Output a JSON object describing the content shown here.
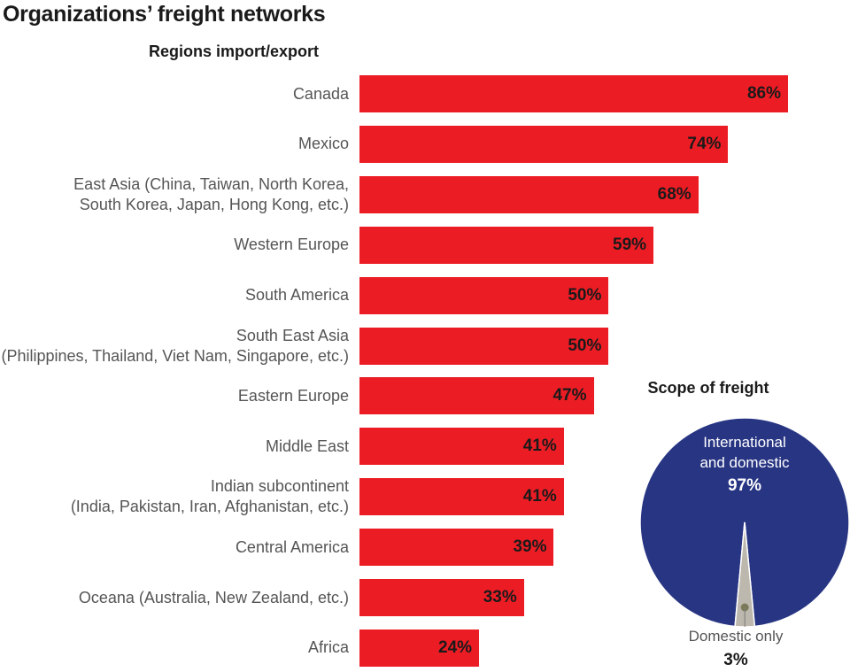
{
  "title": "Organizations’ freight networks",
  "chart_data": [
    {
      "type": "bar",
      "orientation": "horizontal",
      "title": "Regions import/export",
      "categories": [
        [
          "Canada"
        ],
        [
          "Mexico"
        ],
        [
          "East Asia (China, Taiwan, North Korea,",
          "South Korea, Japan, Hong Kong, etc.)"
        ],
        [
          "Western Europe"
        ],
        [
          "South America"
        ],
        [
          "South East Asia",
          "(Philippines, Thailand, Viet Nam, Singapore, etc.)"
        ],
        [
          "Eastern Europe"
        ],
        [
          "Middle East"
        ],
        [
          "Indian subcontinent",
          "(India, Pakistan, Iran, Afghanistan, etc.)"
        ],
        [
          "Central America"
        ],
        [
          "Oceana (Australia, New Zealand, etc.)"
        ],
        [
          "Africa"
        ]
      ],
      "values": [
        86,
        74,
        68,
        59,
        50,
        50,
        47,
        41,
        41,
        39,
        33,
        24
      ],
      "value_labels": [
        "86%",
        "74%",
        "68%",
        "59%",
        "50%",
        "50%",
        "47%",
        "41%",
        "41%",
        "39%",
        "33%",
        "24%"
      ],
      "xlim": [
        0,
        100
      ],
      "bar_color": "#ec1c24",
      "grid": false
    },
    {
      "type": "pie",
      "title": "Scope of freight",
      "slices": [
        {
          "label_lines": [
            "International",
            "and domestic"
          ],
          "value": 97,
          "value_label": "97%",
          "color": "#283583"
        },
        {
          "label_lines": [
            "Domestic only"
          ],
          "value": 3,
          "value_label": "3%",
          "color": "#bdb8ae"
        }
      ]
    }
  ]
}
